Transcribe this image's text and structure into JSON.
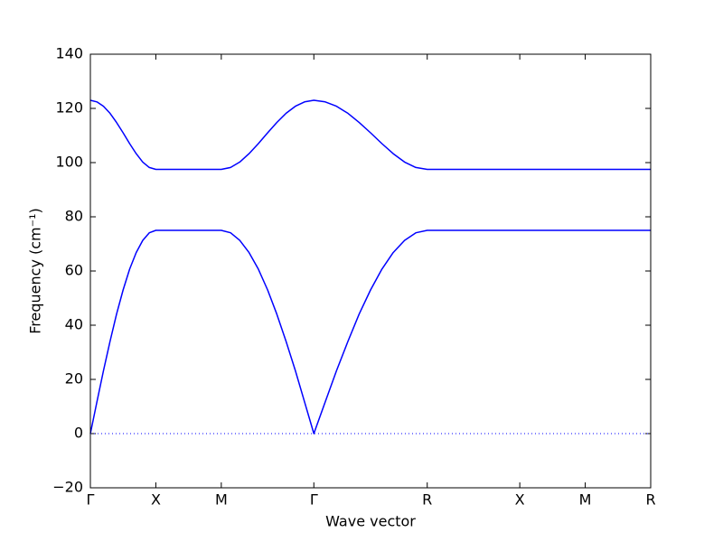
{
  "chart_data": {
    "type": "line",
    "xlabel": "Wave vector",
    "ylabel": "Frequency (cm⁻¹)",
    "x": [
      0,
      0.05,
      0.1,
      0.15,
      0.2,
      0.25,
      0.3,
      0.35,
      0.4,
      0.45,
      0.5,
      1.0,
      1.071,
      1.141,
      1.212,
      1.283,
      1.354,
      1.424,
      1.495,
      1.566,
      1.636,
      1.707,
      1.794,
      1.88,
      1.967,
      2.053,
      2.14,
      2.227,
      2.313,
      2.4,
      2.486,
      2.573,
      3.28,
      3.78,
      4.28
    ],
    "series": [
      {
        "color": "#0000ff",
        "values": [
          0,
          11.7,
          23.2,
          34.0,
          44.1,
          53.0,
          60.7,
          66.8,
          71.3,
          74.1,
          75,
          75,
          74.1,
          71.3,
          66.8,
          60.7,
          53.0,
          44.1,
          34.0,
          23.2,
          11.7,
          0,
          11.7,
          23.2,
          34.0,
          44.1,
          53.0,
          60.7,
          66.8,
          71.3,
          74.1,
          75,
          75,
          75,
          75
        ]
      },
      {
        "color": "#0000ff",
        "values": [
          123,
          122.4,
          120.8,
          118.2,
          114.8,
          111.0,
          107.0,
          103.3,
          100.2,
          98.2,
          97.5,
          97.5,
          98.2,
          100.2,
          103.3,
          107.0,
          111.0,
          114.8,
          118.2,
          120.8,
          122.4,
          123,
          122.4,
          120.8,
          118.2,
          114.8,
          111.0,
          107.0,
          103.3,
          100.2,
          98.2,
          97.5,
          97.5,
          97.5,
          97.5
        ]
      }
    ],
    "hlines": [
      0
    ],
    "xlim": [
      0,
      4.28
    ],
    "ylim": [
      -20,
      140
    ],
    "xticks": [
      {
        "value": 0,
        "label": "Γ"
      },
      {
        "value": 0.5,
        "label": "X"
      },
      {
        "value": 1.0,
        "label": "M"
      },
      {
        "value": 1.707,
        "label": "Γ"
      },
      {
        "value": 2.573,
        "label": "R"
      },
      {
        "value": 3.28,
        "label": "X"
      },
      {
        "value": 3.78,
        "label": "M"
      },
      {
        "value": 4.28,
        "label": "R"
      }
    ],
    "yticks": [
      {
        "value": -20,
        "label": "−20"
      },
      0,
      20,
      40,
      60,
      80,
      100,
      120,
      140
    ]
  }
}
